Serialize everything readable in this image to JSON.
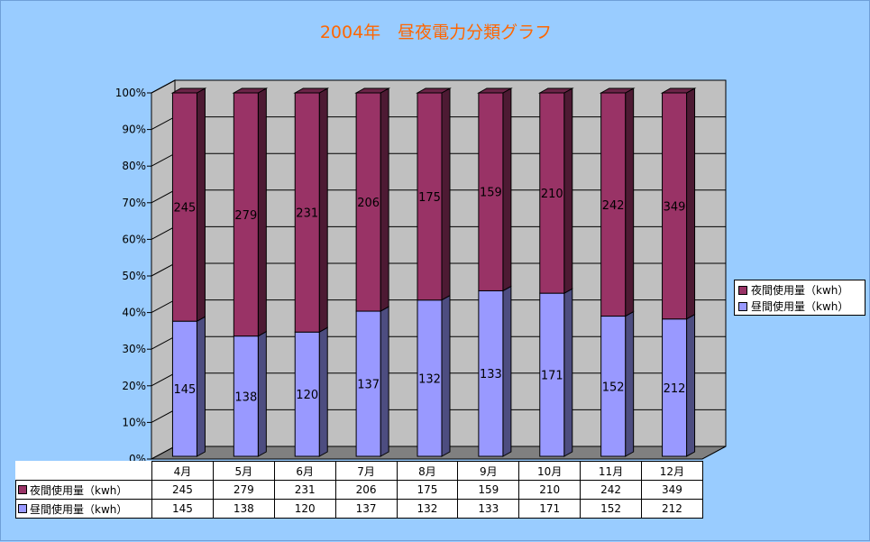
{
  "chart_data": {
    "type": "bar",
    "stacked": "percent",
    "title": "2004年　昼夜電力分類グラフ",
    "categories": [
      "4月",
      "5月",
      "6月",
      "7月",
      "8月",
      "9月",
      "10月",
      "11月",
      "12月"
    ],
    "series": [
      {
        "name": "昼間使用量（kwh）",
        "values": [
          145,
          138,
          120,
          137,
          132,
          133,
          171,
          152,
          212
        ],
        "color": "#9999ff"
      },
      {
        "name": "夜間使用量（kwh）",
        "values": [
          245,
          279,
          231,
          206,
          175,
          159,
          210,
          242,
          349
        ],
        "color": "#993366"
      }
    ],
    "y_ticks": [
      "0%",
      "10%",
      "20%",
      "30%",
      "40%",
      "50%",
      "60%",
      "70%",
      "80%",
      "90%",
      "100%"
    ],
    "ylim": [
      0,
      100
    ],
    "grid": true,
    "legend_position": "right",
    "data_table": true
  },
  "colors": {
    "background": "#99ccff",
    "plot_back": "#c0c0c0",
    "plot_floor": "#808080",
    "title": "#ff6600"
  }
}
